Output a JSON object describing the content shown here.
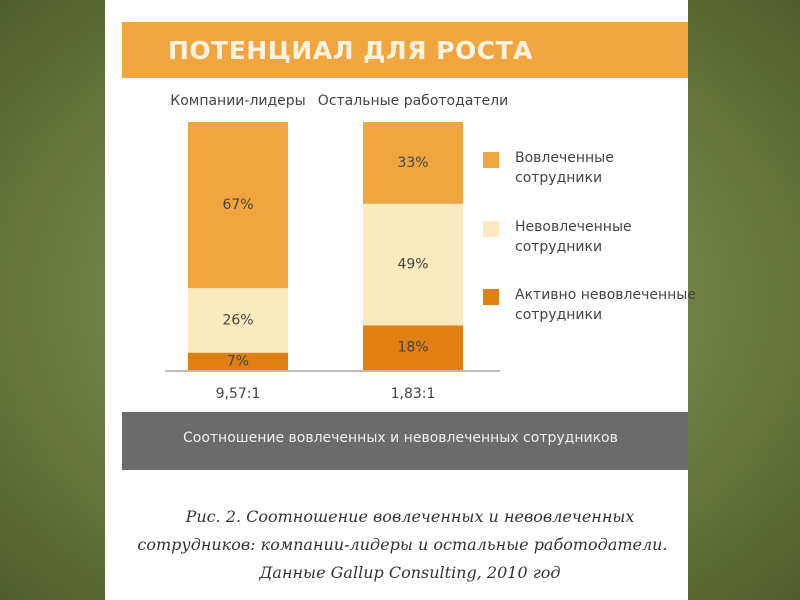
{
  "chart_data": {
    "type": "stacked_bar",
    "title": "ПОТЕНЦИАЛ ДЛЯ РОСТА",
    "categories": [
      "Компании-лидеры",
      "Остальные работодатели"
    ],
    "series": [
      {
        "name": "Активно невовлеченные сотрудники",
        "color": "#e07f12",
        "values": [
          7,
          18
        ],
        "value_labels": [
          "7%",
          "18%"
        ]
      },
      {
        "name": "Невовлеченные сотрудники",
        "color": "#fbe9bf",
        "values": [
          26,
          49
        ],
        "value_labels": [
          "26%",
          "49%"
        ]
      },
      {
        "name": "Вовлеченные сотрудники",
        "color": "#f0a640",
        "values": [
          67,
          33
        ],
        "value_labels": [
          "67%",
          "33%"
        ]
      }
    ],
    "ratios": [
      "9,57:1",
      "1,83:1"
    ],
    "footer": "Соотношение вовлеченных и невовлеченных сотрудников",
    "ylim": [
      0,
      100
    ],
    "caption": [
      "Рис. 2. Соотношение вовлеченных и невовлеченных",
      "сотрудников: компании-лидеры и остальные работодатели.",
      "Данные Gallup Consulting, 2010 год"
    ]
  }
}
